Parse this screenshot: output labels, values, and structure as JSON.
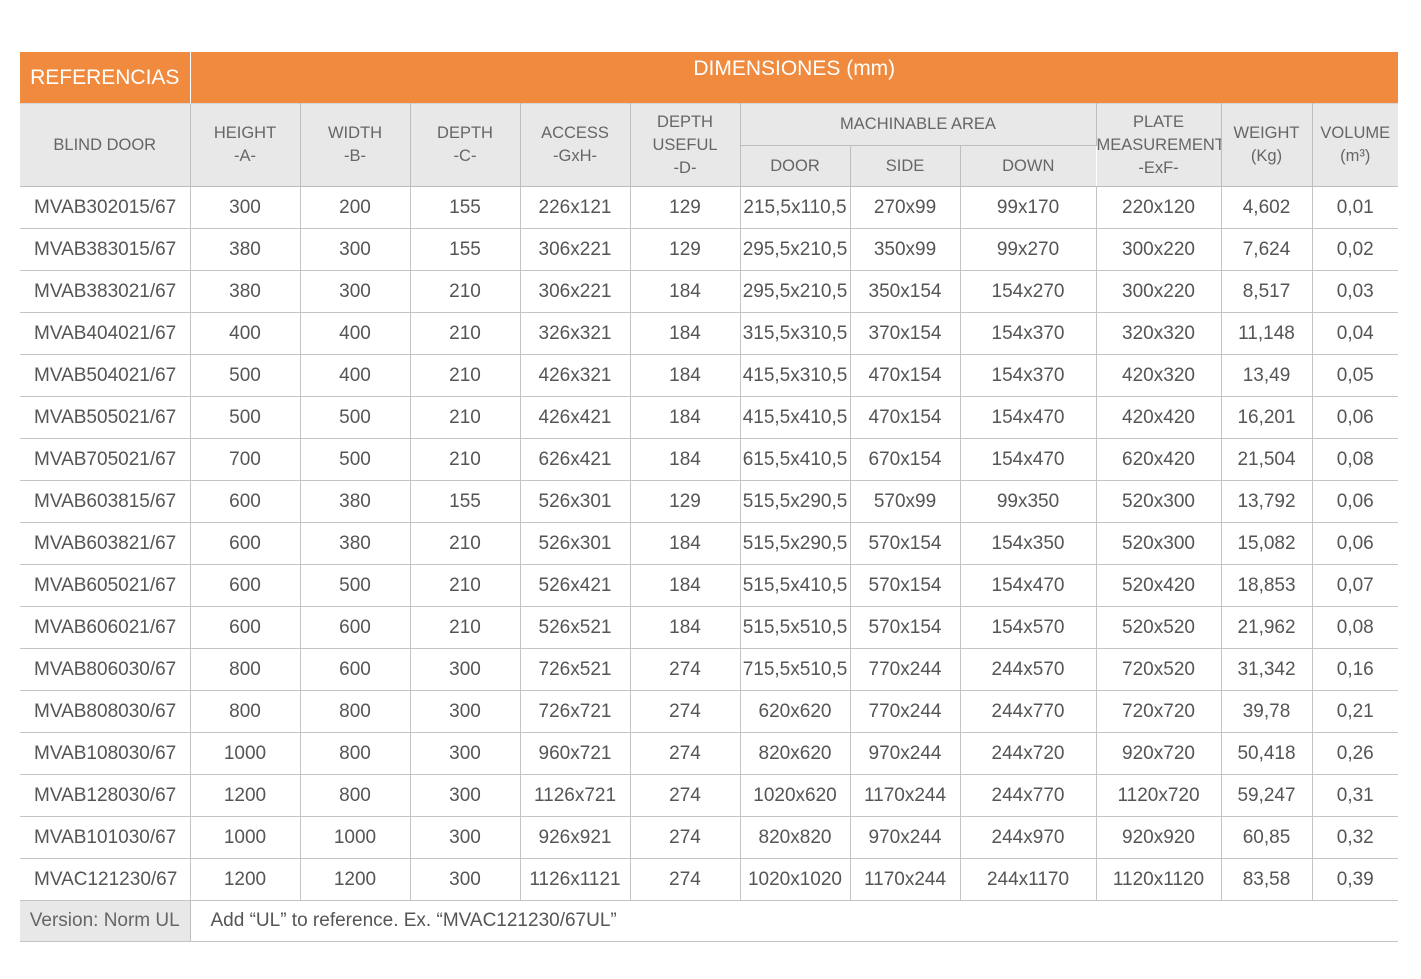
{
  "header": {
    "referencias": "REFERENCIAS",
    "dimensiones": "DIMENSIONES (mm)"
  },
  "columns": {
    "blind_door": "BLIND DOOR",
    "height": [
      "HEIGHT",
      "-A-"
    ],
    "width": [
      "WIDTH",
      "-B-"
    ],
    "depth": [
      "DEPTH",
      "-C-"
    ],
    "access": [
      "ACCESS",
      "-GxH-"
    ],
    "depth_useful": [
      "DEPTH",
      "USEFUL",
      "-D-"
    ],
    "machinable_area": "MACHINABLE AREA",
    "door": "DOOR",
    "side": "SIDE",
    "down": "DOWN",
    "plate": [
      "PLATE",
      "MEASUREMENT",
      "-ExF-"
    ],
    "weight": [
      "WEIGHT",
      "(Kg)"
    ],
    "volume": [
      "VOLUME",
      "(m³)"
    ]
  },
  "rows": [
    [
      "MVAB302015/67",
      "300",
      "200",
      "155",
      "226x121",
      "129",
      "215,5x110,5",
      "270x99",
      "99x170",
      "220x120",
      "4,602",
      "0,01"
    ],
    [
      "MVAB383015/67",
      "380",
      "300",
      "155",
      "306x221",
      "129",
      "295,5x210,5",
      "350x99",
      "99x270",
      "300x220",
      "7,624",
      "0,02"
    ],
    [
      "MVAB383021/67",
      "380",
      "300",
      "210",
      "306x221",
      "184",
      "295,5x210,5",
      "350x154",
      "154x270",
      "300x220",
      "8,517",
      "0,03"
    ],
    [
      "MVAB404021/67",
      "400",
      "400",
      "210",
      "326x321",
      "184",
      "315,5x310,5",
      "370x154",
      "154x370",
      "320x320",
      "11,148",
      "0,04"
    ],
    [
      "MVAB504021/67",
      "500",
      "400",
      "210",
      "426x321",
      "184",
      "415,5x310,5",
      "470x154",
      "154x370",
      "420x320",
      "13,49",
      "0,05"
    ],
    [
      "MVAB505021/67",
      "500",
      "500",
      "210",
      "426x421",
      "184",
      "415,5x410,5",
      "470x154",
      "154x470",
      "420x420",
      "16,201",
      "0,06"
    ],
    [
      "MVAB705021/67",
      "700",
      "500",
      "210",
      "626x421",
      "184",
      "615,5x410,5",
      "670x154",
      "154x470",
      "620x420",
      "21,504",
      "0,08"
    ],
    [
      "MVAB603815/67",
      "600",
      "380",
      "155",
      "526x301",
      "129",
      "515,5x290,5",
      "570x99",
      "99x350",
      "520x300",
      "13,792",
      "0,06"
    ],
    [
      "MVAB603821/67",
      "600",
      "380",
      "210",
      "526x301",
      "184",
      "515,5x290,5",
      "570x154",
      "154x350",
      "520x300",
      "15,082",
      "0,06"
    ],
    [
      "MVAB605021/67",
      "600",
      "500",
      "210",
      "526x421",
      "184",
      "515,5x410,5",
      "570x154",
      "154x470",
      "520x420",
      "18,853",
      "0,07"
    ],
    [
      "MVAB606021/67",
      "600",
      "600",
      "210",
      "526x521",
      "184",
      "515,5x510,5",
      "570x154",
      "154x570",
      "520x520",
      "21,962",
      "0,08"
    ],
    [
      "MVAB806030/67",
      "800",
      "600",
      "300",
      "726x521",
      "274",
      "715,5x510,5",
      "770x244",
      "244x570",
      "720x520",
      "31,342",
      "0,16"
    ],
    [
      "MVAB808030/67",
      "800",
      "800",
      "300",
      "726x721",
      "274",
      "620x620",
      "770x244",
      "244x770",
      "720x720",
      "39,78",
      "0,21"
    ],
    [
      "MVAB108030/67",
      "1000",
      "800",
      "300",
      "960x721",
      "274",
      "820x620",
      "970x244",
      "244x720",
      "920x720",
      "50,418",
      "0,26"
    ],
    [
      "MVAB128030/67",
      "1200",
      "800",
      "300",
      "1126x721",
      "274",
      "1020x620",
      "1170x244",
      "244x770",
      "1120x720",
      "59,247",
      "0,31"
    ],
    [
      "MVAB101030/67",
      "1000",
      "1000",
      "300",
      "926x921",
      "274",
      "820x820",
      "970x244",
      "244x970",
      "920x920",
      "60,85",
      "0,32"
    ],
    [
      "MVAC121230/67",
      "1200",
      "1200",
      "300",
      "1126x1121",
      "274",
      "1020x1020",
      "1170x244",
      "244x1170",
      "1120x1120",
      "83,58",
      "0,39"
    ]
  ],
  "footer": {
    "version": "Version: Norm UL",
    "note": "Add “UL” to reference. Ex. “MVAC121230/67UL”"
  }
}
